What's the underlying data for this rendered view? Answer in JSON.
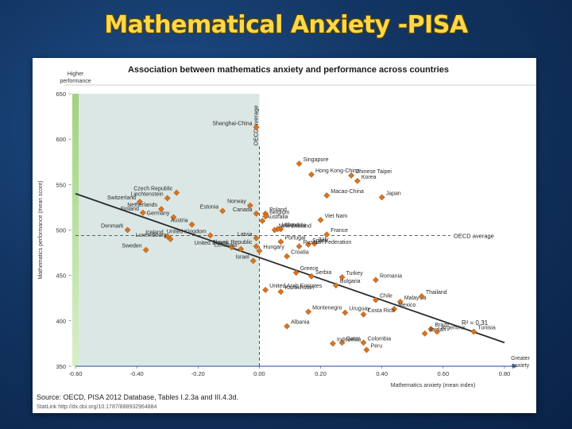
{
  "slide": {
    "title": "Mathematical Anxiety -PISA"
  },
  "source": {
    "text": "Source: OECD, PISA 2012 Database, Tables I.2.3a and III.4.3d.",
    "link": "StatLink http://dx.doi.org/10.1787/888932964884"
  },
  "colors": {
    "marker": "#d8741f",
    "marker_edge": "#8a4210",
    "shade": "#dbe7e4",
    "trend": "#2a2a2a",
    "bar_top": "#9fd37f",
    "bar_bottom": "#d8efc6"
  },
  "chart_data": {
    "type": "scatter",
    "title": "Association between mathematics anxiety and performance across countries",
    "xlabel": "Mathematics anxiety (mean index)",
    "ylabel": "Mathematics performance (mean score)",
    "xlim": [
      -0.6,
      0.8
    ],
    "ylim": [
      350,
      650
    ],
    "xticks": [
      "-0.60",
      "-0.40",
      "-0.20",
      "0.00",
      "0.20",
      "0.40",
      "0.60",
      "0.80"
    ],
    "yticks": [
      "650",
      "600",
      "550",
      "500",
      "450",
      "400",
      "350"
    ],
    "higher_performance_label": "Higher performance",
    "greater_anxiety_label": "Greater anxiety",
    "oecd_vertical_label": "OECD average",
    "oecd_horizontal_label": "OECD average",
    "r2_label": "R² = 0.31",
    "oecd_average": {
      "anxiety": 0.0,
      "performance": 494
    },
    "trend": {
      "start": [
        -0.6,
        540
      ],
      "end": [
        0.8,
        376
      ]
    },
    "points": [
      {
        "name": "Shanghai-China",
        "x": -0.01,
        "y": 613
      },
      {
        "name": "Singapore",
        "x": 0.13,
        "y": 573
      },
      {
        "name": "Hong Kong-China",
        "x": 0.17,
        "y": 561
      },
      {
        "name": "Chinese Taipei",
        "x": 0.3,
        "y": 560
      },
      {
        "name": "Korea",
        "x": 0.32,
        "y": 554
      },
      {
        "name": "Japan",
        "x": 0.4,
        "y": 536
      },
      {
        "name": "Macao-China",
        "x": 0.22,
        "y": 538
      },
      {
        "name": "Switzerland",
        "x": -0.39,
        "y": 531
      },
      {
        "name": "Liechtenstein",
        "x": -0.3,
        "y": 535
      },
      {
        "name": "Czech Republic",
        "x": -0.27,
        "y": 541
      },
      {
        "name": "Finland",
        "x": -0.38,
        "y": 519
      },
      {
        "name": "Netherlands",
        "x": -0.32,
        "y": 523
      },
      {
        "name": "Estonia",
        "x": -0.12,
        "y": 521
      },
      {
        "name": "Norway",
        "x": -0.03,
        "y": 527
      },
      {
        "name": "Poland",
        "x": 0.02,
        "y": 518
      },
      {
        "name": "Canada",
        "x": -0.01,
        "y": 518
      },
      {
        "name": "Australia",
        "x": 0.01,
        "y": 510
      },
      {
        "name": "Belgium",
        "x": 0.02,
        "y": 515
      },
      {
        "name": "Slovenia",
        "x": 0.07,
        "y": 501
      },
      {
        "name": "Germany",
        "x": -0.28,
        "y": 514
      },
      {
        "name": "Austria",
        "x": -0.22,
        "y": 506
      },
      {
        "name": "Denmark",
        "x": -0.43,
        "y": 500
      },
      {
        "name": "Viet Nam",
        "x": 0.2,
        "y": 511
      },
      {
        "name": "Ireland",
        "x": 0.06,
        "y": 501
      },
      {
        "name": "France",
        "x": 0.22,
        "y": 495
      },
      {
        "name": "New Zealand",
        "x": 0.05,
        "y": 500
      },
      {
        "name": "Latvia",
        "x": -0.01,
        "y": 491
      },
      {
        "name": "Iceland",
        "x": -0.3,
        "y": 493
      },
      {
        "name": "United Kingdom",
        "x": -0.16,
        "y": 494
      },
      {
        "name": "Sweden",
        "x": -0.37,
        "y": 478
      },
      {
        "name": "Luxembourg",
        "x": -0.29,
        "y": 490
      },
      {
        "name": "Italy",
        "x": 0.18,
        "y": 485
      },
      {
        "name": "Spain",
        "x": 0.16,
        "y": 484
      },
      {
        "name": "Russian Federation",
        "x": 0.13,
        "y": 482
      },
      {
        "name": "Portugal",
        "x": 0.07,
        "y": 487
      },
      {
        "name": "Croatia",
        "x": 0.09,
        "y": 471
      },
      {
        "name": "United States",
        "x": -0.09,
        "y": 481
      },
      {
        "name": "Lithuania",
        "x": -0.06,
        "y": 479
      },
      {
        "name": "Israel",
        "x": -0.02,
        "y": 466
      },
      {
        "name": "Greece",
        "x": 0.12,
        "y": 453
      },
      {
        "name": "Serbia",
        "x": 0.17,
        "y": 449
      },
      {
        "name": "Romania",
        "x": 0.38,
        "y": 445
      },
      {
        "name": "Malaysia",
        "x": 0.46,
        "y": 421
      },
      {
        "name": "Hungary",
        "x": 0.0,
        "y": 477
      },
      {
        "name": "Turkey",
        "x": 0.27,
        "y": 448
      },
      {
        "name": "Slovak Republic",
        "x": -0.01,
        "y": 482
      },
      {
        "name": "Kazakhstan",
        "x": 0.07,
        "y": 432
      },
      {
        "name": "Bulgaria",
        "x": 0.25,
        "y": 439
      },
      {
        "name": "Thailand",
        "x": 0.53,
        "y": 427
      },
      {
        "name": "Chile",
        "x": 0.38,
        "y": 423
      },
      {
        "name": "United Arab Emirates",
        "x": 0.02,
        "y": 434
      },
      {
        "name": "Mexico",
        "x": 0.44,
        "y": 413
      },
      {
        "name": "Uruguay",
        "x": 0.28,
        "y": 409
      },
      {
        "name": "Montenegro",
        "x": 0.16,
        "y": 410
      },
      {
        "name": "Costa Rica",
        "x": 0.34,
        "y": 407
      },
      {
        "name": "Brazil",
        "x": 0.56,
        "y": 391
      },
      {
        "name": "Albania",
        "x": 0.09,
        "y": 394
      },
      {
        "name": "Tunisia",
        "x": 0.7,
        "y": 388
      },
      {
        "name": "Jordan",
        "x": 0.54,
        "y": 386
      },
      {
        "name": "Argentina",
        "x": 0.58,
        "y": 388
      },
      {
        "name": "Qatar",
        "x": 0.27,
        "y": 376
      },
      {
        "name": "Colombia",
        "x": 0.34,
        "y": 376
      },
      {
        "name": "Indonesia",
        "x": 0.24,
        "y": 375
      },
      {
        "name": "Peru",
        "x": 0.35,
        "y": 368
      }
    ]
  }
}
